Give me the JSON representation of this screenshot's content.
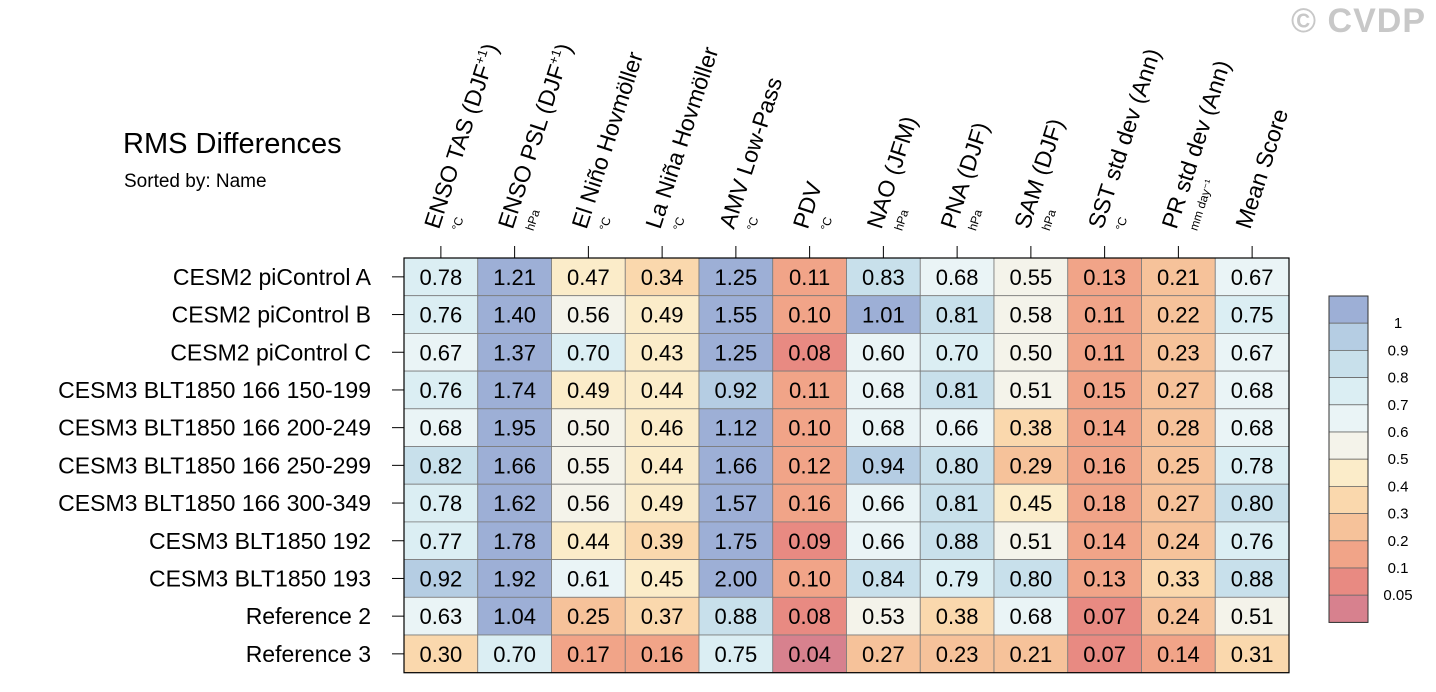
{
  "watermark": "© CVDP",
  "chart_data": {
    "type": "heatmap",
    "title": "RMS Differences",
    "subtitle": "Sorted by: Name",
    "columns": [
      {
        "label": "ENSO TAS (DJF",
        "sup": "+1",
        "close": ")",
        "unit": "°C"
      },
      {
        "label": "ENSO PSL (DJF",
        "sup": "+1",
        "close": ")",
        "unit": "hPa"
      },
      {
        "label": "El Niño Hovmöller",
        "sup": "",
        "close": "",
        "unit": "°C"
      },
      {
        "label": "La Niña Hovmöller",
        "sup": "",
        "close": "",
        "unit": "°C"
      },
      {
        "label": "AMV Low-Pass",
        "sup": "",
        "close": "",
        "unit": "°C"
      },
      {
        "label": "PDV",
        "sup": "",
        "close": "",
        "unit": "°C"
      },
      {
        "label": "NAO (JFM)",
        "sup": "",
        "close": "",
        "unit": "hPa"
      },
      {
        "label": "PNA (DJF)",
        "sup": "",
        "close": "",
        "unit": "hPa"
      },
      {
        "label": "SAM (DJF)",
        "sup": "",
        "close": "",
        "unit": "hPa"
      },
      {
        "label": "SST std dev (Ann)",
        "sup": "",
        "close": "",
        "unit": "°C"
      },
      {
        "label": "PR std dev (Ann)",
        "sup": "",
        "close": "",
        "unit": "mm day⁻¹"
      },
      {
        "label": "Mean Score",
        "sup": "",
        "close": "",
        "unit": ""
      }
    ],
    "rows": [
      "CESM2 piControl A",
      "CESM2 piControl B",
      "CESM2 piControl C",
      "CESM3 BLT1850 166 150-199",
      "CESM3 BLT1850 166 200-249",
      "CESM3 BLT1850 166 250-299",
      "CESM3 BLT1850 166 300-349",
      "CESM3 BLT1850 192",
      "CESM3 BLT1850 193",
      "Reference 2",
      "Reference 3"
    ],
    "values": [
      [
        "0.78",
        "1.21",
        "0.47",
        "0.34",
        "1.25",
        "0.11",
        "0.83",
        "0.68",
        "0.55",
        "0.13",
        "0.21",
        "0.67"
      ],
      [
        "0.76",
        "1.40",
        "0.56",
        "0.49",
        "1.55",
        "0.10",
        "1.01",
        "0.81",
        "0.58",
        "0.11",
        "0.22",
        "0.75"
      ],
      [
        "0.67",
        "1.37",
        "0.70",
        "0.43",
        "1.25",
        "0.08",
        "0.60",
        "0.70",
        "0.50",
        "0.11",
        "0.23",
        "0.67"
      ],
      [
        "0.76",
        "1.74",
        "0.49",
        "0.44",
        "0.92",
        "0.11",
        "0.68",
        "0.81",
        "0.51",
        "0.15",
        "0.27",
        "0.68"
      ],
      [
        "0.68",
        "1.95",
        "0.50",
        "0.46",
        "1.12",
        "0.10",
        "0.68",
        "0.66",
        "0.38",
        "0.14",
        "0.28",
        "0.68"
      ],
      [
        "0.82",
        "1.66",
        "0.55",
        "0.44",
        "1.66",
        "0.12",
        "0.94",
        "0.80",
        "0.29",
        "0.16",
        "0.25",
        "0.78"
      ],
      [
        "0.78",
        "1.62",
        "0.56",
        "0.49",
        "1.57",
        "0.16",
        "0.66",
        "0.81",
        "0.45",
        "0.18",
        "0.27",
        "0.80"
      ],
      [
        "0.77",
        "1.78",
        "0.44",
        "0.39",
        "1.75",
        "0.09",
        "0.66",
        "0.88",
        "0.51",
        "0.14",
        "0.24",
        "0.76"
      ],
      [
        "0.92",
        "1.92",
        "0.61",
        "0.45",
        "2.00",
        "0.10",
        "0.84",
        "0.79",
        "0.80",
        "0.13",
        "0.33",
        "0.88"
      ],
      [
        "0.63",
        "1.04",
        "0.25",
        "0.37",
        "0.88",
        "0.08",
        "0.53",
        "0.38",
        "0.68",
        "0.07",
        "0.24",
        "0.51"
      ],
      [
        "0.30",
        "0.70",
        "0.17",
        "0.16",
        "0.75",
        "0.04",
        "0.27",
        "0.23",
        "0.21",
        "0.07",
        "0.14",
        "0.31"
      ]
    ],
    "colorbar": {
      "levels": [
        "1",
        "0.9",
        "0.8",
        "0.7",
        "0.6",
        "0.5",
        "0.4",
        "0.3",
        "0.2",
        "0.1",
        "0.05"
      ],
      "thresholds": [
        1,
        0.9,
        0.8,
        0.7,
        0.6,
        0.5,
        0.4,
        0.3,
        0.2,
        0.1,
        0.05
      ],
      "colors": [
        "#9dafd6",
        "#b5cde3",
        "#c8e0eb",
        "#dbeef3",
        "#eaf4f6",
        "#f4f3ea",
        "#fbecc9",
        "#fad8ad",
        "#f6c29a",
        "#f1a488",
        "#e88a82",
        "#d7818e"
      ]
    }
  }
}
